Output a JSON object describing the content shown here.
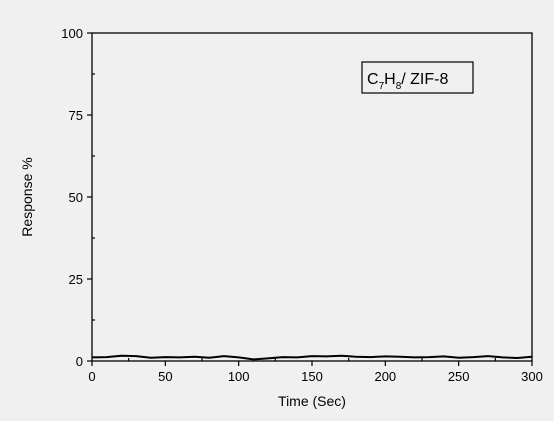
{
  "chart_data": {
    "type": "line",
    "xlabel": "Time (Sec)",
    "ylabel": "Response %",
    "xlim": [
      0,
      300
    ],
    "ylim": [
      0,
      100
    ],
    "xticks": [
      0,
      50,
      100,
      150,
      200,
      250,
      300
    ],
    "yticks": [
      0,
      25,
      50,
      75,
      100
    ],
    "grid": false,
    "annotation": {
      "main": "C",
      "sub1": "7",
      "mid": "H",
      "sub2": "8",
      "tail": "/ ZIF-8"
    },
    "series": [
      {
        "color": "#000000",
        "x": [
          0,
          10,
          20,
          30,
          40,
          50,
          60,
          70,
          80,
          90,
          100,
          110,
          120,
          130,
          140,
          150,
          160,
          170,
          180,
          190,
          200,
          210,
          220,
          230,
          240,
          250,
          260,
          270,
          280,
          290,
          300
        ],
        "y": [
          1.1,
          1.2,
          1.6,
          1.5,
          1.0,
          1.2,
          1.1,
          1.3,
          1.0,
          1.5,
          1.1,
          0.5,
          0.8,
          1.2,
          1.1,
          1.5,
          1.4,
          1.6,
          1.3,
          1.2,
          1.4,
          1.3,
          1.1,
          1.2,
          1.4,
          1.0,
          1.2,
          1.5,
          1.1,
          0.9,
          1.3
        ]
      }
    ]
  }
}
